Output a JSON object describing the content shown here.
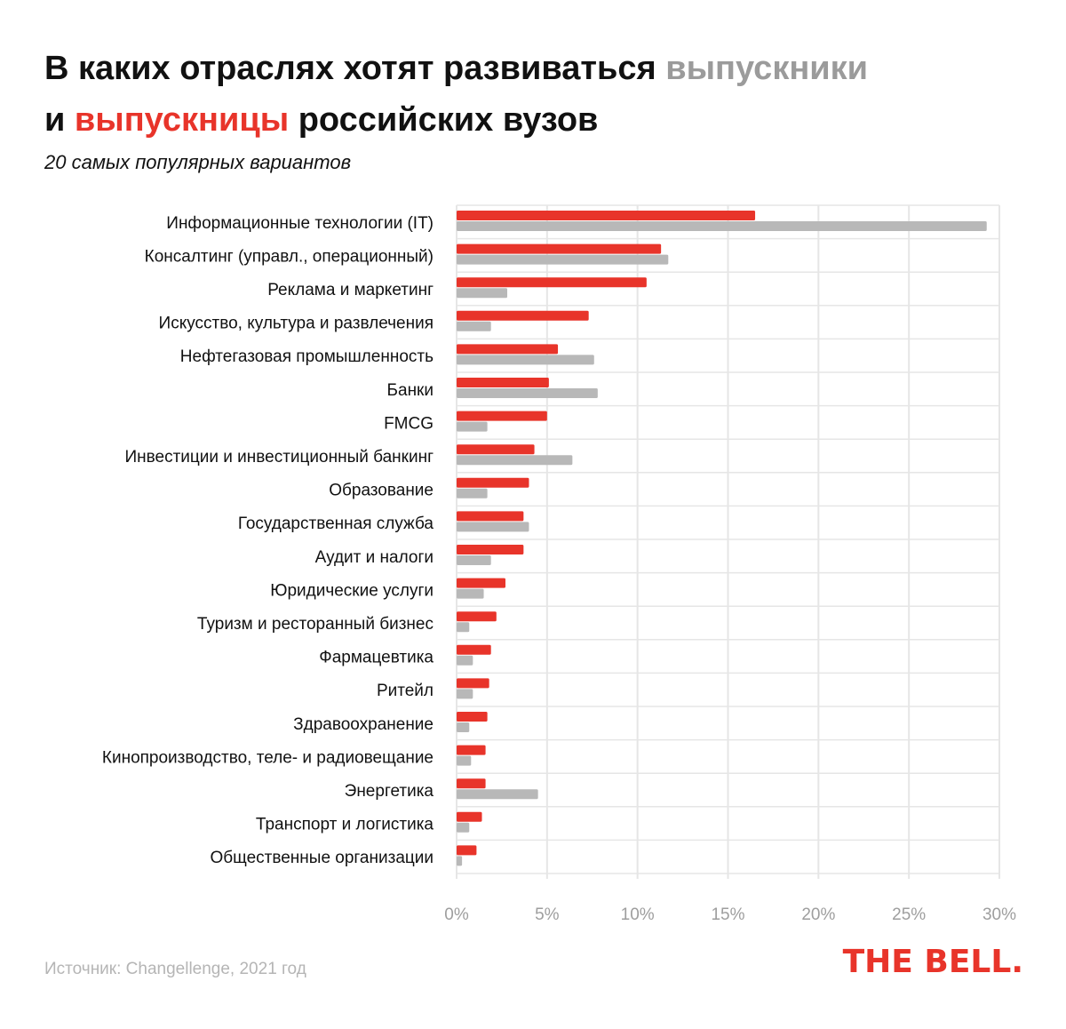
{
  "header": {
    "title_part1": "В каких отраслях хотят развиваться ",
    "title_male": "выпускники",
    "title_part2": "и ",
    "title_female": "выпускницы",
    "title_part3": " российских вузов",
    "subtitle": "20 самых популярных вариантов"
  },
  "footer": {
    "source": "Источник: Changellenge, 2021 год",
    "logo": "THE BELL."
  },
  "colors": {
    "female": "#e8342a",
    "male": "#b8b8b8",
    "grid": "#e6e6e6",
    "tick": "#9e9e9e"
  },
  "chart_data": {
    "type": "bar",
    "orientation": "horizontal",
    "title": "В каких отраслях хотят развиваться выпускники и выпускницы российских вузов",
    "subtitle": "20 самых популярных вариантов",
    "categories": [
      "Информационные технологии (IT)",
      "Консалтинг (управл., операционный)",
      "Реклама и маркетинг",
      "Искусство, культура и развлечения",
      "Нефтегазовая промышленность",
      "Банки",
      "FMCG",
      "Инвестиции и инвестиционный банкинг",
      "Образование",
      "Государственная служба",
      "Аудит и налоги",
      "Юридические услуги",
      "Туризм и ресторанный бизнес",
      "Фармацевтика",
      "Ритейл",
      "Здравоохранение",
      "Кинопроизводство, теле- и радиовещание",
      "Энергетика",
      "Транспорт и логистика",
      "Общественные организации"
    ],
    "series": [
      {
        "name": "выпускницы",
        "color": "#e8342a",
        "values": [
          16.5,
          11.3,
          10.5,
          7.3,
          5.6,
          5.1,
          5.0,
          4.3,
          4.0,
          3.7,
          3.7,
          2.7,
          2.2,
          1.9,
          1.8,
          1.7,
          1.6,
          1.6,
          1.4,
          1.1
        ]
      },
      {
        "name": "выпускники",
        "color": "#b8b8b8",
        "values": [
          29.3,
          11.7,
          2.8,
          1.9,
          7.6,
          7.8,
          1.7,
          6.4,
          1.7,
          4.0,
          1.9,
          1.5,
          0.7,
          0.9,
          0.9,
          0.7,
          0.8,
          4.5,
          0.7,
          0.3
        ]
      }
    ],
    "xlim": [
      0,
      30
    ],
    "xticks": [
      "0%",
      "5%",
      "10%",
      "15%",
      "20%",
      "25%",
      "30%"
    ],
    "xtick_values": [
      0,
      5,
      10,
      15,
      20,
      25,
      30
    ],
    "grid": true,
    "xlabel": "",
    "ylabel": ""
  }
}
